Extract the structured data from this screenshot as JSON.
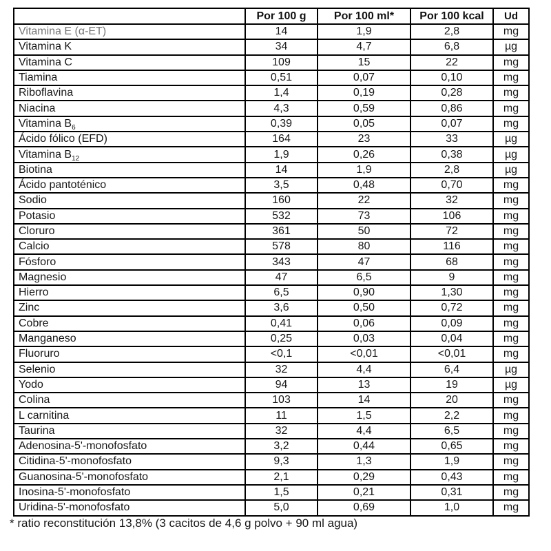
{
  "table": {
    "corner_label": "",
    "columns": [
      "Por 100 g",
      "Por 100 ml*",
      "Por 100 kcal",
      "Ud"
    ],
    "rows": [
      {
        "name": "Vitamina E (α-ET)",
        "per_100g": "14",
        "per_100ml": "1,9",
        "per_100kcal": "2,8",
        "unit": "mg",
        "muted": true
      },
      {
        "name": "Vitamina K",
        "per_100g": "34",
        "per_100ml": "4,7",
        "per_100kcal": "6,8",
        "unit": "µg"
      },
      {
        "name": "Vitamina C",
        "per_100g": "109",
        "per_100ml": "15",
        "per_100kcal": "22",
        "unit": "mg"
      },
      {
        "name": "Tiamina",
        "per_100g": "0,51",
        "per_100ml": "0,07",
        "per_100kcal": "0,10",
        "unit": "mg"
      },
      {
        "name": "Riboflavina",
        "per_100g": "1,4",
        "per_100ml": "0,19",
        "per_100kcal": "0,28",
        "unit": "mg"
      },
      {
        "name": "Niacina",
        "per_100g": "4,3",
        "per_100ml": "0,59",
        "per_100kcal": "0,86",
        "unit": "mg"
      },
      {
        "name": "Vitamina B",
        "name_sub": "6",
        "per_100g": "0,39",
        "per_100ml": "0,05",
        "per_100kcal": "0,07",
        "unit": "mg"
      },
      {
        "name": "Ácido fólico (EFD)",
        "per_100g": "164",
        "per_100ml": "23",
        "per_100kcal": "33",
        "unit": "µg"
      },
      {
        "name": "Vitamina B",
        "name_sub": "12",
        "per_100g": "1,9",
        "per_100ml": "0,26",
        "per_100kcal": "0,38",
        "unit": "µg"
      },
      {
        "name": "Biotina",
        "per_100g": "14",
        "per_100ml": "1,9",
        "per_100kcal": "2,8",
        "unit": "µg"
      },
      {
        "name": "Ácido pantoténico",
        "per_100g": "3,5",
        "per_100ml": "0,48",
        "per_100kcal": "0,70",
        "unit": "mg"
      },
      {
        "name": "Sodio",
        "per_100g": "160",
        "per_100ml": "22",
        "per_100kcal": "32",
        "unit": "mg"
      },
      {
        "name": "Potasio",
        "per_100g": "532",
        "per_100ml": "73",
        "per_100kcal": "106",
        "unit": "mg"
      },
      {
        "name": "Cloruro",
        "per_100g": "361",
        "per_100ml": "50",
        "per_100kcal": "72",
        "unit": "mg"
      },
      {
        "name": "Calcio",
        "per_100g": "578",
        "per_100ml": "80",
        "per_100kcal": "116",
        "unit": "mg"
      },
      {
        "name": "Fósforo",
        "per_100g": "343",
        "per_100ml": "47",
        "per_100kcal": "68",
        "unit": "mg"
      },
      {
        "name": "Magnesio",
        "per_100g": "47",
        "per_100ml": "6,5",
        "per_100kcal": "9",
        "unit": "mg"
      },
      {
        "name": "Hierro",
        "per_100g": "6,5",
        "per_100ml": "0,90",
        "per_100kcal": "1,30",
        "unit": "mg"
      },
      {
        "name": "Zinc",
        "per_100g": "3,6",
        "per_100ml": "0,50",
        "per_100kcal": "0,72",
        "unit": "mg"
      },
      {
        "name": "Cobre",
        "per_100g": "0,41",
        "per_100ml": "0,06",
        "per_100kcal": "0,09",
        "unit": "mg"
      },
      {
        "name": "Manganeso",
        "per_100g": "0,25",
        "per_100ml": "0,03",
        "per_100kcal": "0,04",
        "unit": "mg"
      },
      {
        "name": "Fluoruro",
        "per_100g": "<0,1",
        "per_100ml": "<0,01",
        "per_100kcal": "<0,01",
        "unit": "mg"
      },
      {
        "name": "Selenio",
        "per_100g": "32",
        "per_100ml": "4,4",
        "per_100kcal": "6,4",
        "unit": "µg"
      },
      {
        "name": "Yodo",
        "per_100g": "94",
        "per_100ml": "13",
        "per_100kcal": "19",
        "unit": "µg"
      },
      {
        "name": "Colina",
        "per_100g": "103",
        "per_100ml": "14",
        "per_100kcal": "20",
        "unit": "mg"
      },
      {
        "name": "L carnitina",
        "per_100g": "11",
        "per_100ml": "1,5",
        "per_100kcal": "2,2",
        "unit": "mg"
      },
      {
        "name": "Taurina",
        "per_100g": "32",
        "per_100ml": "4,4",
        "per_100kcal": "6,5",
        "unit": "mg"
      },
      {
        "name": "Adenosina-5'-monofosfato",
        "per_100g": "3,2",
        "per_100ml": "0,44",
        "per_100kcal": "0,65",
        "unit": "mg"
      },
      {
        "name": "Citidina-5'-monofosfato",
        "per_100g": "9,3",
        "per_100ml": "1,3",
        "per_100kcal": "1,9",
        "unit": "mg"
      },
      {
        "name": "Guanosina-5'-monofosfato",
        "per_100g": "2,1",
        "per_100ml": "0,29",
        "per_100kcal": "0,43",
        "unit": "mg"
      },
      {
        "name": "Inosina-5'-monofosfato",
        "per_100g": "1,5",
        "per_100ml": "0,21",
        "per_100kcal": "0,31",
        "unit": "mg"
      },
      {
        "name": "Uridina-5'-monofosfato",
        "per_100g": "5,0",
        "per_100ml": "0,69",
        "per_100kcal": "1,0",
        "unit": "mg"
      }
    ]
  },
  "footnote": "* ratio reconstitución 13,8% (3 cacitos de 4,6 g polvo + 90 ml agua)"
}
